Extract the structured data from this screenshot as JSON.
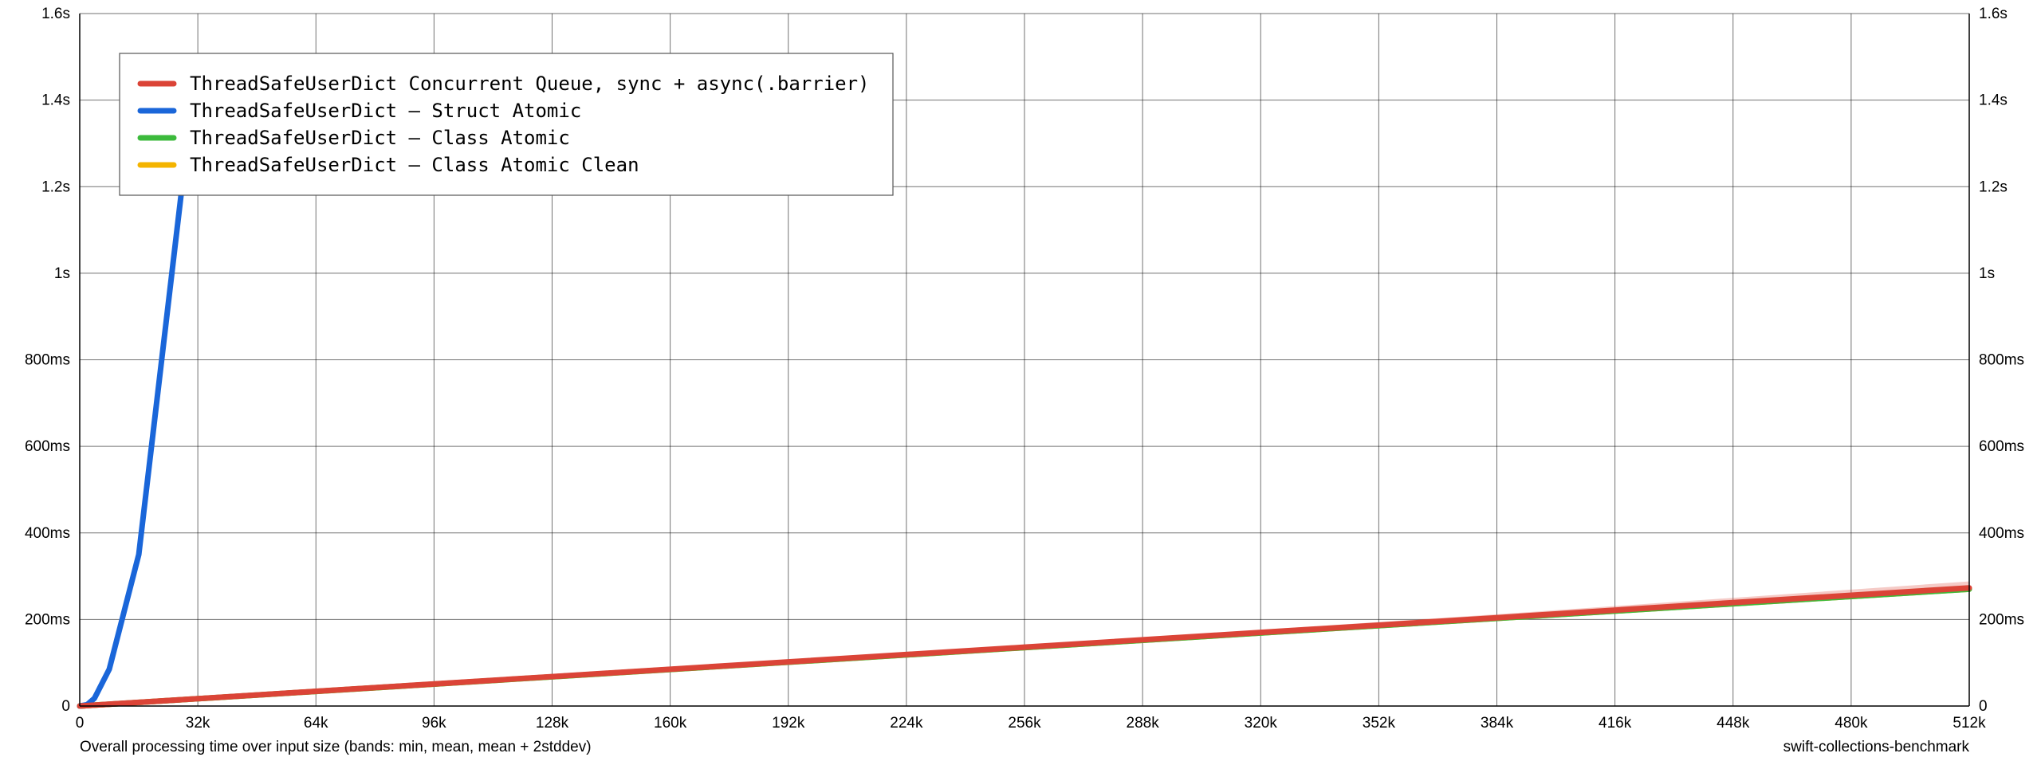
{
  "chart_data": {
    "type": "line",
    "title": "",
    "xlabel": "Overall processing time over input size (bands: min, mean, mean + 2stddev)",
    "watermark": "swift-collections-benchmark",
    "xlim": [
      0,
      524288
    ],
    "ylim": [
      0,
      1.6
    ],
    "y_unit": "seconds",
    "grid": true,
    "legend_position": "top-left",
    "x_ticks": [
      {
        "value": 0,
        "label": "0"
      },
      {
        "value": 32768,
        "label": "32k"
      },
      {
        "value": 65536,
        "label": "64k"
      },
      {
        "value": 98304,
        "label": "96k"
      },
      {
        "value": 131072,
        "label": "128k"
      },
      {
        "value": 163840,
        "label": "160k"
      },
      {
        "value": 196608,
        "label": "192k"
      },
      {
        "value": 229376,
        "label": "224k"
      },
      {
        "value": 262144,
        "label": "256k"
      },
      {
        "value": 294912,
        "label": "288k"
      },
      {
        "value": 327680,
        "label": "320k"
      },
      {
        "value": 360448,
        "label": "352k"
      },
      {
        "value": 393216,
        "label": "384k"
      },
      {
        "value": 425984,
        "label": "416k"
      },
      {
        "value": 458752,
        "label": "448k"
      },
      {
        "value": 491520,
        "label": "480k"
      },
      {
        "value": 524288,
        "label": "512k"
      }
    ],
    "y_ticks": [
      {
        "value": 0,
        "label": "0"
      },
      {
        "value": 0.2,
        "label": "200ms"
      },
      {
        "value": 0.4,
        "label": "400ms"
      },
      {
        "value": 0.6,
        "label": "600ms"
      },
      {
        "value": 0.8,
        "label": "800ms"
      },
      {
        "value": 1.0,
        "label": "1s"
      },
      {
        "value": 1.2,
        "label": "1.2s"
      },
      {
        "value": 1.4,
        "label": "1.4s"
      },
      {
        "value": 1.6,
        "label": "1.6s"
      }
    ],
    "series": [
      {
        "name": "ThreadSafeUserDict Concurrent Queue, sync + async(.barrier)",
        "color": "#db4437",
        "x": [
          0,
          32768,
          65536,
          131072,
          196608,
          262144,
          327680,
          393216,
          458752,
          524288
        ],
        "values": [
          0,
          0.017,
          0.034,
          0.068,
          0.102,
          0.136,
          0.17,
          0.204,
          0.239,
          0.273
        ],
        "upper": [
          0,
          0.018,
          0.036,
          0.071,
          0.106,
          0.141,
          0.176,
          0.212,
          0.25,
          0.288
        ]
      },
      {
        "name": "ThreadSafeUserDict – Struct Atomic",
        "color": "#1a66d9",
        "x": [
          0,
          2048,
          4096,
          8192,
          16384,
          28672,
          32768
        ],
        "values": [
          0,
          0.003,
          0.018,
          0.085,
          0.35,
          1.22,
          1.45
        ]
      },
      {
        "name": "ThreadSafeUserDict – Class Atomic",
        "color": "#3cba3c",
        "x": [
          0,
          524288
        ],
        "values": [
          0,
          0.27
        ]
      },
      {
        "name": "ThreadSafeUserDict – Class Atomic Clean",
        "color": "#f4b400",
        "x": [
          0,
          524288
        ],
        "values": [
          0,
          0.27
        ]
      }
    ]
  }
}
